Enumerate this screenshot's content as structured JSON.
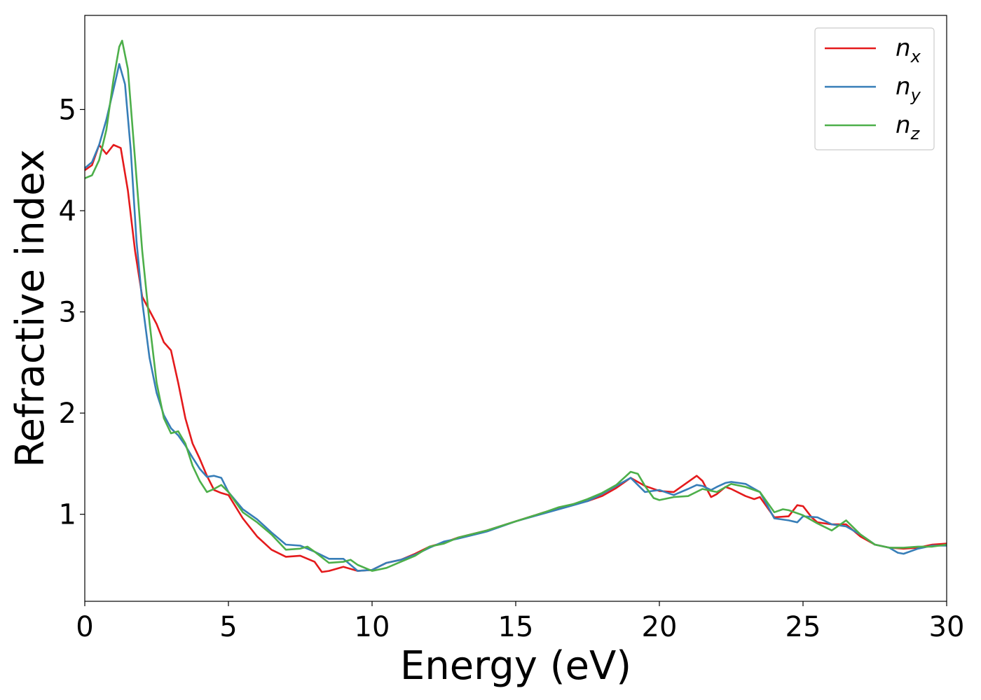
{
  "chart_data": {
    "type": "line",
    "title": "",
    "xlabel": "Energy (eV)",
    "ylabel": "Refractive index",
    "xlim": [
      0,
      30
    ],
    "ylim": [
      0.14,
      5.93
    ],
    "xticks": [
      0,
      5,
      10,
      15,
      20,
      25,
      30
    ],
    "yticks": [
      1,
      2,
      3,
      4,
      5
    ],
    "grid": false,
    "legend_position": "top-right",
    "series": [
      {
        "name": "n_x",
        "legend_base": "n",
        "legend_sub": "x",
        "color": "#e41a1c",
        "x": [
          0,
          0.25,
          0.5,
          0.75,
          1.0,
          1.25,
          1.5,
          1.75,
          2.0,
          2.5,
          2.75,
          3.0,
          3.25,
          3.5,
          3.75,
          4.0,
          4.25,
          4.5,
          4.75,
          5.0,
          5.5,
          6.0,
          6.5,
          7.0,
          7.5,
          8.0,
          8.25,
          8.5,
          9.0,
          9.5,
          10.0,
          10.5,
          11.0,
          11.5,
          12.0,
          12.5,
          13.0,
          14.0,
          15.0,
          16.0,
          16.5,
          17.0,
          17.5,
          18.0,
          18.5,
          19.0,
          19.5,
          20.0,
          20.5,
          21.0,
          21.3,
          21.5,
          21.8,
          22.0,
          22.3,
          22.5,
          23.0,
          23.3,
          23.5,
          24.0,
          24.5,
          24.8,
          25.0,
          25.3,
          25.5,
          26.0,
          26.5,
          27.0,
          27.5,
          28.0,
          28.5,
          29.0,
          29.5,
          30.0
        ],
        "y": [
          4.4,
          4.45,
          4.65,
          4.56,
          4.65,
          4.62,
          4.2,
          3.6,
          3.15,
          2.88,
          2.7,
          2.62,
          2.3,
          1.95,
          1.7,
          1.55,
          1.38,
          1.24,
          1.21,
          1.19,
          0.96,
          0.78,
          0.65,
          0.58,
          0.59,
          0.53,
          0.43,
          0.44,
          0.48,
          0.44,
          0.45,
          0.52,
          0.55,
          0.61,
          0.68,
          0.72,
          0.77,
          0.84,
          0.93,
          1.02,
          1.06,
          1.1,
          1.13,
          1.18,
          1.26,
          1.36,
          1.28,
          1.23,
          1.22,
          1.32,
          1.38,
          1.33,
          1.17,
          1.2,
          1.27,
          1.25,
          1.18,
          1.15,
          1.17,
          0.97,
          0.98,
          1.09,
          1.08,
          0.97,
          0.92,
          0.9,
          0.9,
          0.78,
          0.7,
          0.67,
          0.66,
          0.67,
          0.7,
          0.71
        ]
      },
      {
        "name": "n_y",
        "legend_base": "n",
        "legend_sub": "y",
        "color": "#377eb8",
        "x": [
          0,
          0.25,
          0.5,
          0.75,
          1.0,
          1.2,
          1.4,
          1.6,
          1.8,
          2.0,
          2.25,
          2.5,
          2.75,
          3.0,
          3.25,
          3.5,
          3.75,
          4.0,
          4.25,
          4.5,
          4.75,
          5.0,
          5.5,
          6.0,
          6.5,
          7.0,
          7.5,
          8.0,
          8.5,
          9.0,
          9.5,
          10.0,
          10.5,
          11.0,
          11.5,
          12.0,
          12.5,
          13.0,
          14.0,
          15.0,
          16.0,
          16.5,
          17.0,
          17.5,
          18.0,
          18.5,
          19.0,
          19.5,
          20.0,
          20.5,
          21.0,
          21.3,
          21.5,
          21.8,
          22.0,
          22.3,
          22.5,
          23.0,
          23.5,
          24.0,
          24.5,
          24.8,
          25.0,
          25.5,
          26.0,
          26.5,
          27.0,
          27.5,
          28.0,
          28.3,
          28.5,
          29.0,
          29.5,
          30.0
        ],
        "y": [
          4.42,
          4.48,
          4.65,
          4.9,
          5.2,
          5.45,
          5.25,
          4.6,
          3.7,
          3.1,
          2.55,
          2.2,
          1.98,
          1.85,
          1.78,
          1.68,
          1.56,
          1.45,
          1.37,
          1.38,
          1.36,
          1.22,
          1.05,
          0.95,
          0.82,
          0.7,
          0.69,
          0.63,
          0.56,
          0.56,
          0.44,
          0.45,
          0.52,
          0.55,
          0.6,
          0.67,
          0.73,
          0.76,
          0.83,
          0.93,
          1.01,
          1.05,
          1.09,
          1.13,
          1.2,
          1.28,
          1.36,
          1.22,
          1.24,
          1.19,
          1.25,
          1.29,
          1.28,
          1.24,
          1.27,
          1.31,
          1.32,
          1.3,
          1.22,
          0.96,
          0.94,
          0.92,
          0.98,
          0.97,
          0.9,
          0.88,
          0.8,
          0.7,
          0.67,
          0.62,
          0.61,
          0.66,
          0.69,
          0.69
        ]
      },
      {
        "name": "n_z",
        "legend_base": "n",
        "legend_sub": "z",
        "color": "#4daf4a",
        "x": [
          0,
          0.25,
          0.5,
          0.75,
          1.0,
          1.2,
          1.3,
          1.5,
          1.75,
          2.0,
          2.25,
          2.5,
          2.75,
          3.0,
          3.25,
          3.5,
          3.75,
          4.0,
          4.25,
          4.5,
          4.75,
          5.0,
          5.5,
          6.0,
          6.5,
          7.0,
          7.5,
          7.75,
          8.0,
          8.5,
          9.0,
          9.25,
          9.5,
          10.0,
          10.5,
          11.0,
          11.5,
          12.0,
          12.5,
          13.0,
          14.0,
          15.0,
          16.0,
          16.5,
          17.0,
          17.5,
          18.0,
          18.5,
          19.0,
          19.25,
          19.5,
          19.8,
          20.0,
          20.5,
          21.0,
          21.5,
          22.0,
          22.5,
          23.0,
          23.5,
          24.0,
          24.3,
          24.5,
          25.0,
          25.5,
          26.0,
          26.5,
          27.0,
          27.5,
          28.0,
          28.5,
          29.0,
          29.5,
          30.0
        ],
        "y": [
          4.32,
          4.35,
          4.5,
          4.8,
          5.3,
          5.62,
          5.68,
          5.4,
          4.5,
          3.6,
          2.9,
          2.3,
          1.95,
          1.8,
          1.82,
          1.7,
          1.48,
          1.33,
          1.22,
          1.25,
          1.29,
          1.22,
          1.02,
          0.92,
          0.8,
          0.65,
          0.66,
          0.68,
          0.63,
          0.52,
          0.53,
          0.55,
          0.5,
          0.44,
          0.47,
          0.53,
          0.59,
          0.68,
          0.71,
          0.77,
          0.84,
          0.93,
          1.02,
          1.07,
          1.1,
          1.15,
          1.21,
          1.29,
          1.42,
          1.4,
          1.28,
          1.16,
          1.14,
          1.17,
          1.18,
          1.25,
          1.22,
          1.3,
          1.27,
          1.22,
          1.02,
          1.05,
          1.04,
          0.99,
          0.91,
          0.84,
          0.94,
          0.8,
          0.7,
          0.67,
          0.67,
          0.68,
          0.68,
          0.7
        ]
      }
    ]
  }
}
